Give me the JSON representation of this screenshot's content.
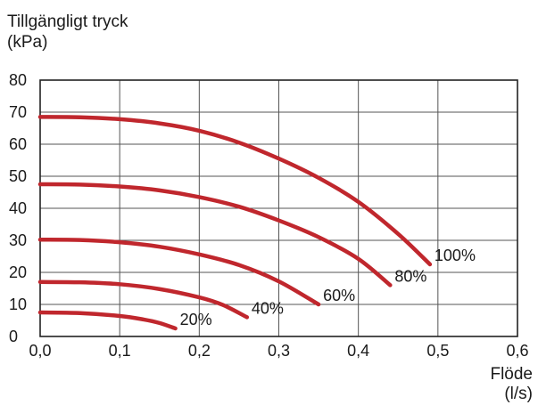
{
  "chart_data": {
    "type": "line",
    "ylabel": [
      "Tillgängligt tryck",
      "(kPa)"
    ],
    "xlabel": [
      "Flöde",
      "(l/s)"
    ],
    "xlim": [
      0.0,
      0.6
    ],
    "ylim": [
      0,
      80
    ],
    "x_ticks": [
      0.0,
      0.1,
      0.2,
      0.3,
      0.4,
      0.5,
      0.6
    ],
    "y_ticks": [
      0,
      10,
      20,
      30,
      40,
      50,
      60,
      70,
      80
    ],
    "x_tick_labels": [
      "0,0",
      "0,1",
      "0,2",
      "0,3",
      "0,4",
      "0,5",
      "0,6"
    ],
    "y_tick_labels": [
      "0",
      "10",
      "20",
      "30",
      "40",
      "50",
      "60",
      "70",
      "80"
    ],
    "grid": true,
    "line_color": "#c0272d",
    "grid_color": "#555555",
    "series": [
      {
        "name": "100%",
        "x": [
          0.0,
          0.05,
          0.1,
          0.15,
          0.2,
          0.25,
          0.3,
          0.35,
          0.4,
          0.45,
          0.49
        ],
        "y": [
          68.5,
          68.4,
          67.8,
          66.5,
          64.2,
          60.5,
          55.5,
          49.5,
          42.0,
          32.0,
          22.5
        ]
      },
      {
        "name": "80%",
        "x": [
          0.0,
          0.05,
          0.1,
          0.15,
          0.2,
          0.25,
          0.3,
          0.35,
          0.4,
          0.44
        ],
        "y": [
          47.5,
          47.4,
          46.8,
          45.6,
          43.5,
          40.5,
          36.2,
          31.0,
          24.2,
          16.0
        ]
      },
      {
        "name": "60%",
        "x": [
          0.0,
          0.05,
          0.1,
          0.15,
          0.2,
          0.25,
          0.3,
          0.35
        ],
        "y": [
          30.2,
          30.1,
          29.4,
          28.0,
          25.6,
          22.3,
          17.2,
          10.0
        ]
      },
      {
        "name": "40%",
        "x": [
          0.0,
          0.05,
          0.1,
          0.15,
          0.2,
          0.23,
          0.26
        ],
        "y": [
          17.0,
          16.9,
          16.3,
          14.8,
          12.2,
          9.8,
          6.0
        ]
      },
      {
        "name": "20%",
        "x": [
          0.0,
          0.05,
          0.1,
          0.13,
          0.15,
          0.17
        ],
        "y": [
          7.5,
          7.3,
          6.4,
          5.3,
          4.2,
          2.5
        ]
      }
    ]
  }
}
